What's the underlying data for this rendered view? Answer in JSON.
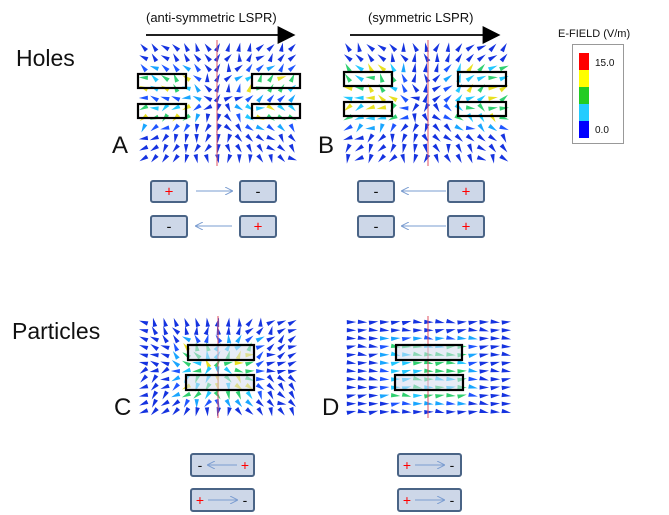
{
  "rows": {
    "holes_label": "Holes",
    "particles_label": "Particles"
  },
  "columns": {
    "left_header": "(anti-symmetric LSPR)",
    "right_header": "(symmetric LSPR)"
  },
  "panels": {
    "a": "A",
    "b": "B",
    "c": "C",
    "d": "D"
  },
  "legend": {
    "title": "E-FIELD (V/m)",
    "max_label": "15.0",
    "min_label": "0.0",
    "colors": [
      "#ff0000",
      "#ffff00",
      "#22cc22",
      "#22ccff",
      "#0000ff"
    ]
  },
  "charges": {
    "plus": "+",
    "minus": "-"
  },
  "colors": {
    "rod_fill": "#cdd7e8",
    "rod_border": "#4a6486",
    "arrow": "#7a9cd0",
    "plus": "#ff0000",
    "field_low": "#0000ff",
    "field_mid": "#00aaff"
  }
}
